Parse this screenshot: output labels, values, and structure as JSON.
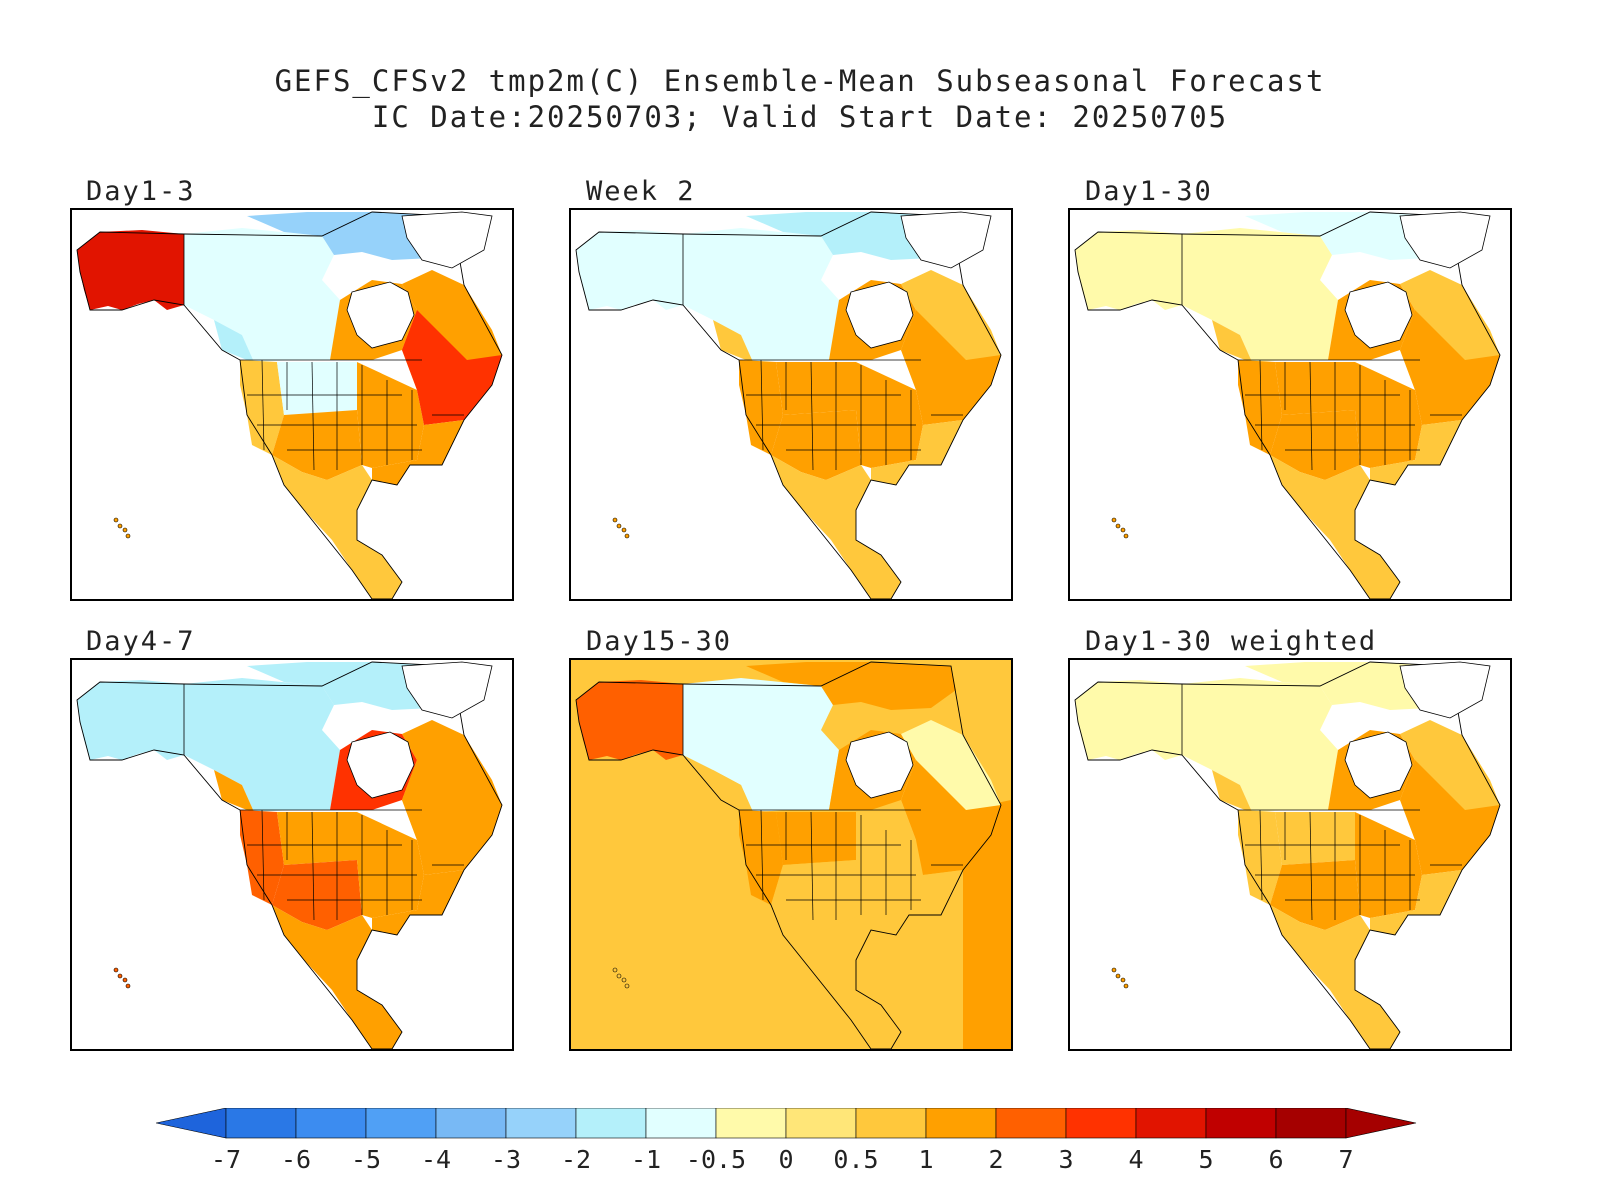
{
  "chart_data": {
    "type": "heatmap",
    "title": "GEFS_CFSv2 tmp2m(C) Ensemble-Mean Subseasonal Forecast",
    "subtitle": "IC Date:20250703; Valid Start Date: 20250705",
    "panels": [
      {
        "label": "Day1-3",
        "summary": {
          "alaska": 4,
          "west_canada": -2,
          "nw_canada": -1,
          "arctic": -3,
          "quebec": 1,
          "hudson_bay": 1,
          "great_plains": -1,
          "us_west": 0.5,
          "us_southwest": 1,
          "us_central": 1,
          "us_southeast": 1,
          "us_northeast": 3,
          "mexico": 0.5,
          "central_america": 0.5
        }
      },
      {
        "label": "Week 2",
        "summary": {
          "alaska": -1,
          "west_canada": 0.5,
          "nw_canada": -1,
          "arctic": -2,
          "quebec": 0.5,
          "hudson_bay": 1,
          "great_plains": 1,
          "us_west": 1,
          "us_southwest": 1,
          "us_central": 1,
          "us_southeast": 0.5,
          "us_northeast": 1,
          "mexico": 0.5,
          "central_america": 0.5
        }
      },
      {
        "label": "Day1-30",
        "summary": {
          "alaska": -0.5,
          "west_canada": 0.5,
          "nw_canada": -0.5,
          "arctic": -1,
          "quebec": 0.5,
          "hudson_bay": 1,
          "great_plains": 1,
          "us_west": 1,
          "us_southwest": 1,
          "us_central": 1,
          "us_southeast": 0.5,
          "us_northeast": 1,
          "mexico": 0.5,
          "central_america": 0.5
        }
      },
      {
        "label": "Day4-7",
        "summary": {
          "alaska": -2,
          "west_canada": 1,
          "nw_canada": -2,
          "arctic": -2,
          "quebec": 1,
          "hudson_bay": 3,
          "great_plains": 1,
          "us_west": 2,
          "us_southwest": 2,
          "us_central": 1,
          "us_southeast": 1,
          "us_northeast": 1,
          "mexico": 1,
          "central_america": 1
        }
      },
      {
        "label": "Day15-30",
        "summary": {
          "alaska": 2,
          "west_canada": 0.5,
          "nw_canada": -1,
          "arctic": 1,
          "quebec": -0.5,
          "hudson_bay": 1,
          "great_plains": 1,
          "us_west": 1,
          "us_southwest": 0.5,
          "us_central": 0.5,
          "us_southeast": 0.5,
          "us_northeast": 1,
          "mexico": 0.5,
          "central_america": 0.5,
          "pacific": 0.5,
          "atlantic": 1
        }
      },
      {
        "label": "Day1-30 weighted",
        "summary": {
          "alaska": -0.5,
          "west_canada": 0.5,
          "nw_canada": -0.5,
          "arctic": -0.5,
          "quebec": 0.5,
          "hudson_bay": 1,
          "great_plains": 0.5,
          "us_west": 0.5,
          "us_southwest": 1,
          "us_central": 1,
          "us_southeast": 0.5,
          "us_northeast": 1,
          "mexico": 0.5,
          "central_america": 0.5
        }
      }
    ],
    "colorbar": {
      "tick_labels": [
        "-7",
        "-6",
        "-5",
        "-4",
        "-3",
        "-2",
        "-1",
        "-0.5",
        "0",
        "0.5",
        "1",
        "2",
        "3",
        "4",
        "5",
        "6",
        "7"
      ],
      "colors": [
        "#1e64dc",
        "#2a78e6",
        "#3c8cf0",
        "#50a0f5",
        "#78b9f5",
        "#96d2fa",
        "#b4f0fa",
        "#e1ffff",
        "#fffaaa",
        "#ffe678",
        "#ffc83c",
        "#ffa000",
        "#ff6000",
        "#ff3200",
        "#e11400",
        "#c00000",
        "#a50000"
      ]
    }
  }
}
